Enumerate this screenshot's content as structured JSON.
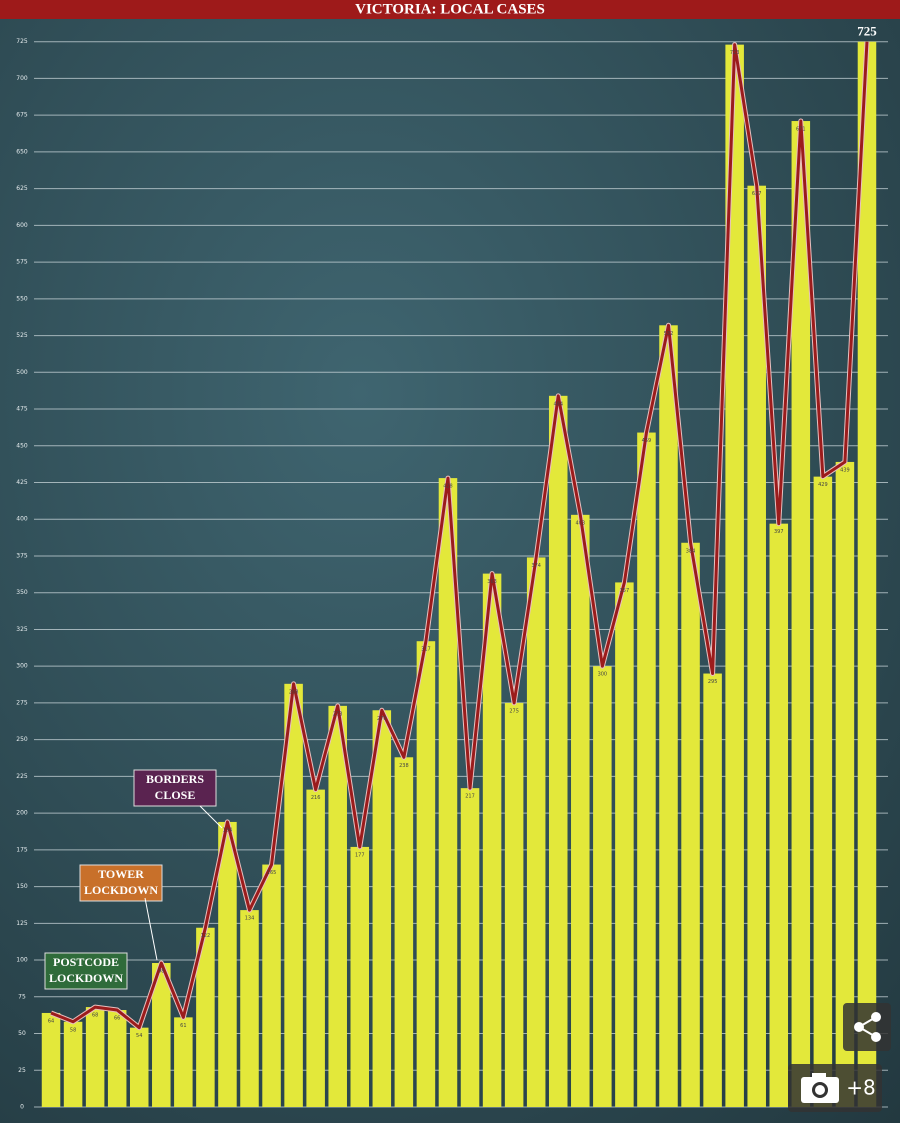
{
  "chart_data": {
    "type": "bar",
    "title": "VICTORIA: LOCAL CASES",
    "values": [
      64,
      58,
      68,
      66,
      54,
      98,
      61,
      122,
      194,
      134,
      165,
      288,
      216,
      273,
      177,
      270,
      238,
      317,
      428,
      217,
      363,
      275,
      374,
      484,
      403,
      300,
      357,
      459,
      532,
      384,
      295,
      723,
      627,
      397,
      671,
      429,
      439,
      725
    ],
    "color": "#e3e83a",
    "line_color": "#9b1c1c",
    "ylim": [
      0,
      735
    ],
    "yticks": [
      0,
      25,
      50,
      75,
      100,
      125,
      150,
      175,
      200,
      225,
      250,
      275,
      300,
      325,
      350,
      375,
      400,
      425,
      450,
      475,
      500,
      525,
      550,
      575,
      600,
      625,
      650,
      675,
      700,
      725
    ],
    "grid": true,
    "annotations": [
      {
        "lines": [
          "POSTCODE",
          "LOCKDOWN"
        ],
        "color": "#2f6b3a"
      },
      {
        "lines": [
          "TOWER",
          "LOCKDOWN"
        ],
        "color": "#c8702a"
      },
      {
        "lines": [
          "BORDERS",
          "CLOSE"
        ],
        "color": "#5a2350"
      }
    ]
  },
  "photo_count": "+8"
}
